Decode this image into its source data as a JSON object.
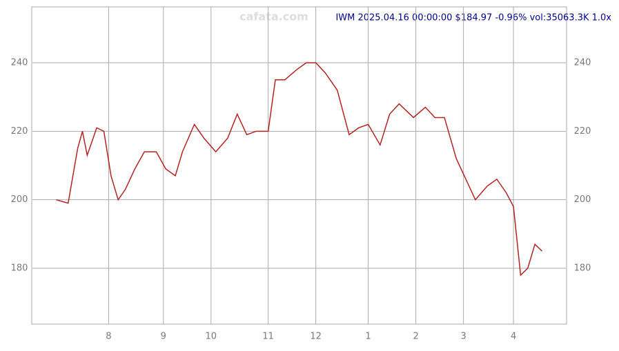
{
  "chart_data": {
    "type": "line",
    "title": "IWM 2025.04.16 00:00:00 $184.97 -0.96% vol:35063.3K 1.0x",
    "watermark": "cafata.com",
    "x": [
      10,
      15,
      19,
      21,
      23,
      27,
      30,
      33,
      36,
      39,
      43,
      47,
      52,
      56,
      60,
      63,
      68,
      72,
      77,
      82,
      86,
      90,
      94,
      99,
      102,
      106,
      111,
      115,
      119,
      123,
      128,
      133,
      137,
      141,
      146,
      150,
      154,
      160,
      165,
      169,
      173,
      178,
      182,
      186,
      191,
      195,
      199,
      202,
      205,
      208,
      211,
      214
    ],
    "series": [
      {
        "name": "IWM",
        "color": "#b22222",
        "values": [
          200,
          199,
          215,
          220,
          213,
          221,
          220,
          207,
          200,
          203,
          209,
          214,
          214,
          209,
          207,
          214,
          222,
          218,
          214,
          218,
          225,
          219,
          220,
          220,
          235,
          235,
          238,
          240,
          240,
          237,
          232,
          219,
          221,
          222,
          216,
          225,
          228,
          224,
          227,
          224,
          224,
          212,
          206,
          200,
          204,
          206,
          202,
          198,
          178,
          180,
          187,
          185
        ]
      }
    ],
    "xlim": [
      0,
      224
    ],
    "xticks": [
      {
        "value": 32,
        "label": "8"
      },
      {
        "value": 55,
        "label": "9"
      },
      {
        "value": 75,
        "label": "10"
      },
      {
        "value": 99,
        "label": "11"
      },
      {
        "value": 119,
        "label": "12"
      },
      {
        "value": 141,
        "label": "1"
      },
      {
        "value": 161,
        "label": "2"
      },
      {
        "value": 181,
        "label": "3"
      },
      {
        "value": 202,
        "label": "4"
      }
    ],
    "ylim": [
      163.7,
      256.3
    ],
    "yticks": [
      180,
      200,
      220,
      240
    ],
    "grid": true
  }
}
